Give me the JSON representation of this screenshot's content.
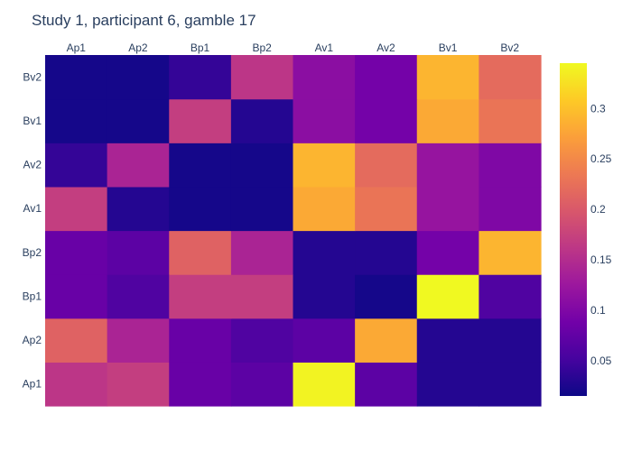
{
  "chart_data": {
    "type": "heatmap",
    "title": "Study 1, participant 6, gamble 17",
    "x_categories": [
      "Ap1",
      "Ap2",
      "Bp1",
      "Bp2",
      "Av1",
      "Av2",
      "Bv1",
      "Bv2"
    ],
    "y_categories": [
      "Ap1",
      "Ap2",
      "Bp1",
      "Bp2",
      "Av1",
      "Av2",
      "Bv1",
      "Bv2"
    ],
    "values": [
      [
        0.16,
        0.17,
        0.08,
        0.07,
        0.34,
        0.07,
        0.03,
        0.03
      ],
      [
        0.21,
        0.14,
        0.08,
        0.06,
        0.07,
        0.28,
        0.03,
        0.03
      ],
      [
        0.08,
        0.06,
        0.17,
        0.17,
        0.03,
        0.02,
        0.35,
        0.06
      ],
      [
        0.08,
        0.07,
        0.21,
        0.14,
        0.03,
        0.03,
        0.09,
        0.29
      ],
      [
        0.17,
        0.03,
        0.02,
        0.02,
        0.28,
        0.23,
        0.12,
        0.1
      ],
      [
        0.04,
        0.14,
        0.02,
        0.02,
        0.29,
        0.22,
        0.12,
        0.1
      ],
      [
        0.02,
        0.02,
        0.17,
        0.03,
        0.11,
        0.09,
        0.28,
        0.23
      ],
      [
        0.02,
        0.02,
        0.04,
        0.16,
        0.11,
        0.09,
        0.29,
        0.22
      ]
    ],
    "zlim": [
      0.015,
      0.345
    ],
    "colorscale": "plasma",
    "colorbar_ticks": [
      0.05,
      0.1,
      0.15,
      0.2,
      0.25,
      0.3
    ],
    "x_axis_side": "top",
    "grid": false
  },
  "colors": {
    "text": "#2a3f5f",
    "plasma": [
      "#0d0887",
      "#46039f",
      "#7201a8",
      "#9c179e",
      "#bd3786",
      "#d8576b",
      "#ed7953",
      "#fb9f3a",
      "#fdca26",
      "#f0f921"
    ]
  }
}
